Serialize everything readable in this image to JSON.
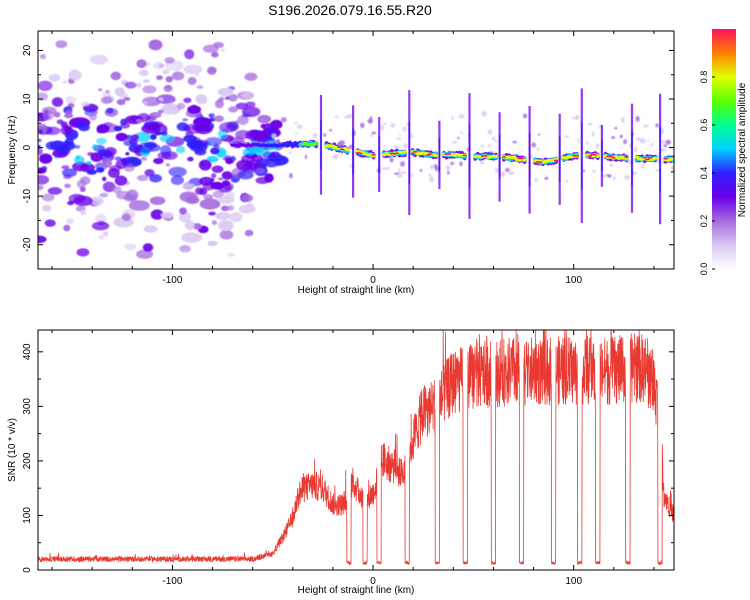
{
  "title": "S196.2026.079.16.55.R20",
  "colors": {
    "snr_line": "#e83a32",
    "axis": "#000000",
    "background": "#ffffff",
    "colormap": [
      "#ffffff",
      "#d9c8f2",
      "#a66be0",
      "#6a00e8",
      "#2f20ff",
      "#00d0ff",
      "#00ff90",
      "#5cff00",
      "#e0ff00",
      "#ff8000",
      "#ff1060"
    ]
  },
  "chart_data": [
    {
      "type": "heatmap",
      "title": "",
      "xlabel": "Height of straight line (km)",
      "ylabel": "Frequency (Hz)",
      "xlim": [
        -167,
        150
      ],
      "ylim": [
        -25,
        24
      ],
      "xticks": [
        -100,
        0,
        100
      ],
      "xtick_labels": [
        "-100",
        "0",
        "100"
      ],
      "yticks": [
        -20,
        -10,
        0,
        10,
        20
      ],
      "ytick_labels": [
        "-20",
        "-10",
        "0",
        "10",
        "20"
      ],
      "grid": false,
      "colorbar": {
        "label": "Normalized spectral amplitude",
        "range": [
          0,
          1
        ],
        "ticks": [
          0.0,
          0.2,
          0.4,
          0.6,
          0.8
        ],
        "tick_labels": [
          "0.0",
          "0.2",
          "0.4",
          "0.6",
          "0.8"
        ]
      },
      "ridge": {
        "description": "dominant Doppler line frequency (Hz) vs height (km)",
        "x": [
          -167,
          -120,
          -80,
          -50,
          -30,
          -20,
          -10,
          0,
          10,
          20,
          30,
          40,
          50,
          60,
          70,
          80,
          85,
          90,
          100,
          110,
          120,
          130,
          140,
          150
        ],
        "y": [
          0,
          0.5,
          0.5,
          0.5,
          0.8,
          0.2,
          -0.8,
          -1.5,
          -1.2,
          -1.0,
          -1.5,
          -1.5,
          -1.8,
          -1.8,
          -2.2,
          -2.6,
          -3.0,
          -2.7,
          -1.8,
          -1.5,
          -2.0,
          -2.2,
          -2.3,
          -2.5
        ]
      },
      "gaps_x": [
        -26,
        -10,
        3,
        18,
        33,
        48,
        63,
        78,
        93,
        104,
        114,
        129,
        143
      ]
    },
    {
      "type": "line",
      "title": "",
      "xlabel": "Height of straight line (km)",
      "ylabel": "SNR (10 * v/v)",
      "xlim": [
        -167,
        150
      ],
      "ylim": [
        0,
        440
      ],
      "xticks": [
        -100,
        0,
        100
      ],
      "xtick_labels": [
        "-100",
        "0",
        "100"
      ],
      "yticks": [
        0,
        100,
        200,
        300,
        400
      ],
      "ytick_labels": [
        "0",
        "100",
        "200",
        "300",
        "400"
      ],
      "grid": false,
      "series": [
        {
          "name": "SNR",
          "envelope_x": [
            -167,
            -60,
            -50,
            -45,
            -40,
            -37,
            -34,
            -30,
            -25,
            -20,
            -15,
            -10,
            -5,
            0,
            5,
            10,
            15,
            20,
            25,
            30,
            35,
            40,
            50,
            60,
            70,
            80,
            90,
            100,
            110,
            120,
            130,
            135,
            140,
            143,
            145,
            150
          ],
          "envelope_y": [
            20,
            20,
            30,
            60,
            95,
            140,
            150,
            155,
            150,
            120,
            120,
            160,
            130,
            140,
            200,
            190,
            180,
            240,
            290,
            300,
            320,
            345,
            355,
            360,
            365,
            365,
            365,
            365,
            365,
            365,
            370,
            370,
            340,
            280,
            140,
            100
          ],
          "dropouts_x": [
            -12,
            -4,
            3,
            17,
            32,
            46,
            60,
            74,
            90,
            103,
            112,
            127,
            143
          ],
          "dropout_level": 10
        }
      ]
    }
  ]
}
